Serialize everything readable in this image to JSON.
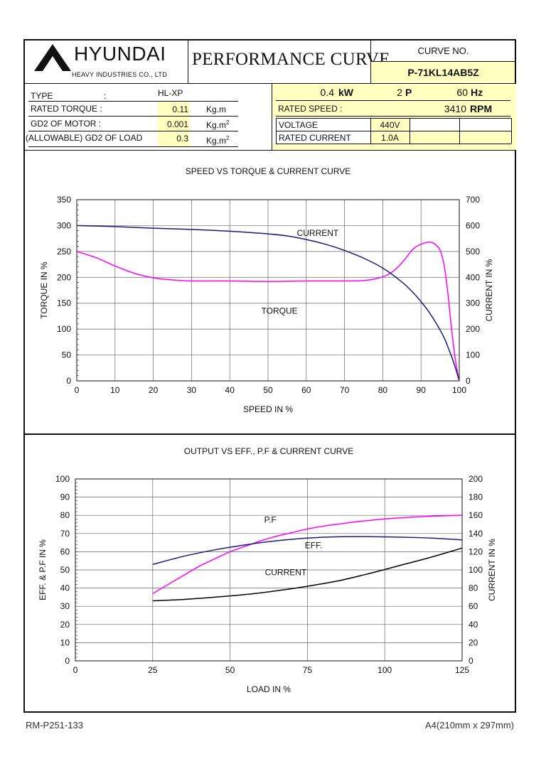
{
  "header": {
    "company": "HYUNDAI",
    "company_sub": "HEAVY INDUSTRIES CO., LTD",
    "doc_title": "PERFORMANCE CURVE",
    "curve_no_label": "CURVE NO.",
    "curve_no": "P-71KL14AB5Z"
  },
  "specs": {
    "type_label": "TYPE",
    "type_colon": ":",
    "type_value": "HL-XP",
    "rated_torque_label": "RATED TORQUE :",
    "rated_torque_value": "0.11",
    "rated_torque_unit": "Kg.m",
    "gd2_motor_label": "GD2 OF MOTOR :",
    "gd2_motor_value": "0.001",
    "gd2_motor_unit": "Kg.m",
    "gd2_load_label": "(ALLOWABLE) GD2 OF LOAD",
    "gd2_load_value": "0.3",
    "gd2_load_unit": "Kg.m",
    "unit_sup": "2",
    "power_value": "0.4",
    "power_unit": "kW",
    "poles_value": "2",
    "poles_unit": "P",
    "freq_value": "60",
    "freq_unit": "Hz",
    "rated_speed_label": "RATED   SPEED :",
    "rated_speed_value": "3410",
    "rated_speed_unit": "RPM",
    "voltage_label": "VOLTAGE",
    "voltage_value": "440V",
    "rated_current_label": "RATED CURRENT",
    "rated_current_value": "1.0A"
  },
  "footer": {
    "left": "RM-P251-133",
    "right": "A4(210mm x 297mm)"
  },
  "colors": {
    "magenta": "#ff00ff",
    "navy": "#1a1a7a",
    "black": "#000000",
    "highlight": "#ffffc0"
  },
  "chart_data": [
    {
      "type": "line",
      "title": "SPEED VS TORQUE & CURRENT CURVE",
      "xlabel": "SPEED IN %",
      "ylabel": "TORQUE IN %",
      "y2label": "CURRENT IN %",
      "xlim": [
        0,
        100
      ],
      "ylim": [
        0,
        350
      ],
      "y2lim": [
        0,
        700
      ],
      "xticks": [
        0,
        10,
        20,
        30,
        40,
        50,
        60,
        70,
        80,
        90,
        100
      ],
      "yticks": [
        0,
        50,
        100,
        150,
        200,
        250,
        300,
        350
      ],
      "y2ticks": [
        0,
        100,
        200,
        300,
        400,
        500,
        600,
        700
      ],
      "grid": true,
      "series": [
        {
          "name": "TORQUE",
          "axis": "left",
          "color": "#ff00ff",
          "x": [
            0,
            5,
            10,
            15,
            20,
            25,
            30,
            40,
            50,
            60,
            70,
            75,
            78,
            80,
            82,
            84,
            86,
            88,
            90,
            92,
            93,
            94,
            95,
            96,
            97,
            98,
            99,
            100
          ],
          "y": [
            250,
            238,
            222,
            208,
            199,
            195,
            193,
            193,
            192,
            193,
            193,
            194,
            197,
            201,
            208,
            220,
            237,
            255,
            264,
            268,
            267,
            262,
            252,
            225,
            170,
            100,
            40,
            0
          ]
        },
        {
          "name": "CURRENT",
          "axis": "right",
          "color": "#1a1a7a",
          "x": [
            0,
            10,
            20,
            30,
            40,
            50,
            55,
            60,
            65,
            70,
            75,
            80,
            85,
            88,
            90,
            92,
            94,
            96,
            97,
            98,
            99,
            100
          ],
          "y": [
            600,
            596,
            590,
            585,
            578,
            568,
            560,
            546,
            528,
            504,
            474,
            436,
            382,
            340,
            306,
            268,
            222,
            168,
            132,
            94,
            50,
            0
          ]
        }
      ],
      "annotations": [
        {
          "text": "CURRENT",
          "x": 63,
          "y": 280
        },
        {
          "text": "TORQUE",
          "x": 53,
          "y": 130
        }
      ]
    },
    {
      "type": "line",
      "title": "OUTPUT VS EFF., P.F & CURRENT CURVE",
      "xlabel": "LOAD IN %",
      "ylabel": "EFF. & P.F IN %",
      "y2label": "CURRENT IN %",
      "xlim": [
        0,
        125
      ],
      "ylim": [
        0,
        100
      ],
      "y2lim": [
        0,
        200
      ],
      "xticks": [
        0,
        25,
        50,
        75,
        100,
        125
      ],
      "yticks": [
        0,
        10,
        20,
        30,
        40,
        50,
        60,
        70,
        80,
        90,
        100
      ],
      "y2ticks": [
        0,
        20,
        40,
        60,
        80,
        100,
        120,
        140,
        160,
        180,
        200
      ],
      "grid": true,
      "series": [
        {
          "name": "P.F",
          "axis": "left",
          "color": "#ff00ff",
          "x": [
            25,
            30,
            35,
            40,
            45,
            50,
            55,
            60,
            65,
            70,
            75,
            80,
            85,
            90,
            95,
            100,
            105,
            110,
            115,
            120,
            125
          ],
          "y": [
            37,
            42,
            47,
            52,
            56,
            60,
            63,
            66,
            68.5,
            70.5,
            72.5,
            74,
            75.2,
            76.3,
            77.2,
            78,
            78.6,
            79.1,
            79.5,
            79.8,
            80
          ]
        },
        {
          "name": "EFF.",
          "axis": "left",
          "color": "#1a1a7a",
          "x": [
            25,
            35,
            45,
            55,
            65,
            75,
            85,
            95,
            105,
            115,
            125
          ],
          "y": [
            53,
            57.5,
            61,
            63.8,
            66,
            67.5,
            68.2,
            68.3,
            68,
            67.5,
            66.5
          ]
        },
        {
          "name": "CURRENT",
          "axis": "right",
          "color": "#000000",
          "x": [
            25,
            35,
            45,
            55,
            65,
            75,
            85,
            95,
            105,
            115,
            125
          ],
          "y": [
            66,
            67.5,
            70,
            73,
            77,
            82,
            88,
            96,
            105,
            114,
            124
          ]
        }
      ],
      "annotations": [
        {
          "text": "P.F",
          "x": 63,
          "y": 76
        },
        {
          "text": "EFF.",
          "x": 77,
          "y": 62
        },
        {
          "text": "CURRENT",
          "x": 68,
          "y": 47
        }
      ]
    }
  ]
}
